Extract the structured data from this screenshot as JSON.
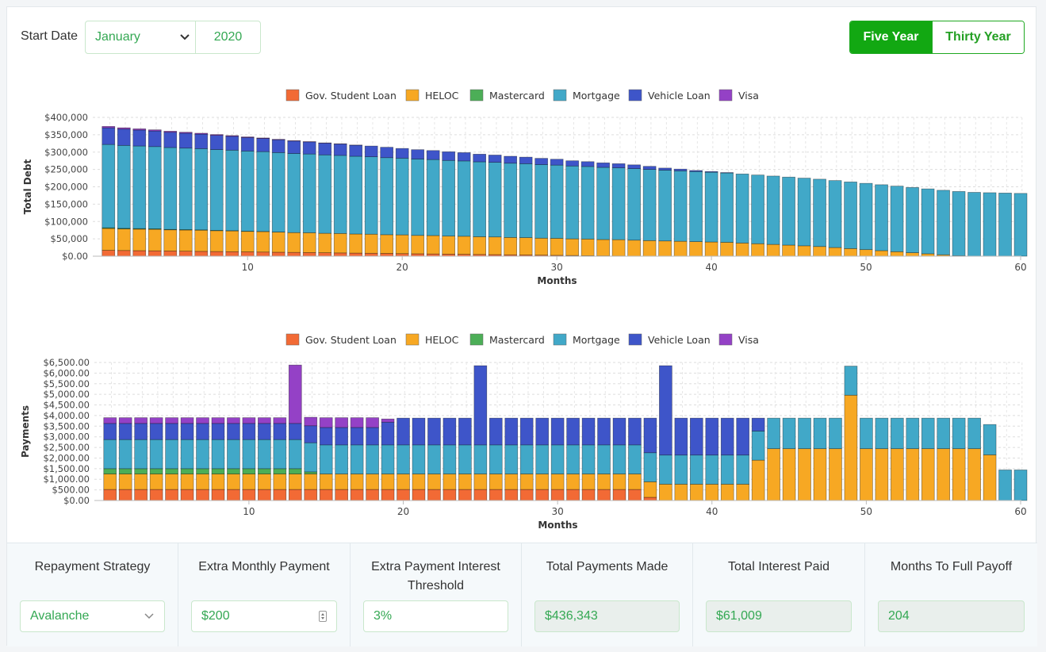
{
  "header": {
    "start_label": "Start Date",
    "month": "January",
    "year": "2020",
    "ranges": [
      "Five Year",
      "Thirty Year"
    ],
    "active_range": "Five Year"
  },
  "colors": {
    "Gov. Student Loan": "#f26a35",
    "HELOC": "#f7a823",
    "Mastercard": "#4cae57",
    "Mortgage": "#41a8c8",
    "Vehicle Loan": "#3e55c9",
    "Visa": "#9441c6"
  },
  "chart_data": [
    {
      "type": "bar",
      "stacked": true,
      "title": "",
      "xlabel": "Months",
      "ylabel": "Total Debt",
      "legend_position": "top",
      "ylim": [
        0,
        400000
      ],
      "y_ticks": [
        "$0.00",
        "$50,000",
        "$100,000",
        "$150,000",
        "$200,000",
        "$250,000",
        "$300,000",
        "$350,000",
        "$400,000"
      ],
      "x_ticks": [
        10,
        20,
        30,
        40,
        50,
        60
      ],
      "grid": true,
      "series_names": [
        "Gov. Student Loan",
        "HELOC",
        "Mastercard",
        "Mortgage",
        "Vehicle Loan",
        "Visa"
      ],
      "rows": [
        [
          1,
          17000,
          63000,
          2000,
          240000,
          48000,
          4000
        ],
        [
          2,
          16500,
          62000,
          1800,
          239000,
          47000,
          3800
        ],
        [
          3,
          16000,
          62000,
          1600,
          238000,
          46000,
          3500
        ],
        [
          4,
          15500,
          62000,
          1400,
          237000,
          45000,
          3300
        ],
        [
          5,
          15000,
          61000,
          1200,
          236000,
          44000,
          3000
        ],
        [
          6,
          14500,
          61000,
          1000,
          235000,
          43000,
          2800
        ],
        [
          7,
          14000,
          61000,
          900,
          234000,
          42000,
          2500
        ],
        [
          8,
          13500,
          60000,
          800,
          233000,
          41000,
          2300
        ],
        [
          9,
          13000,
          60000,
          600,
          232000,
          40000,
          2000
        ],
        [
          10,
          12500,
          59000,
          500,
          231000,
          39000,
          1800
        ],
        [
          11,
          12000,
          59000,
          300,
          230000,
          38000,
          1500
        ],
        [
          12,
          11500,
          58000,
          100,
          229000,
          37000,
          1300
        ],
        [
          13,
          11000,
          57000,
          0,
          228000,
          36000,
          1000
        ],
        [
          14,
          10500,
          57000,
          0,
          227000,
          35000,
          800
        ],
        [
          15,
          10000,
          56000,
          0,
          226000,
          34000,
          600
        ],
        [
          16,
          9500,
          56000,
          0,
          225000,
          33000,
          400
        ],
        [
          17,
          9000,
          55000,
          0,
          224000,
          32000,
          200
        ],
        [
          18,
          8500,
          55000,
          0,
          223000,
          31000,
          0
        ],
        [
          19,
          8000,
          54000,
          0,
          222000,
          30000,
          0
        ],
        [
          20,
          7500,
          54000,
          0,
          221000,
          28000,
          0
        ],
        [
          21,
          7000,
          53000,
          0,
          220000,
          27000,
          0
        ],
        [
          22,
          6500,
          53000,
          0,
          219000,
          26000,
          0
        ],
        [
          23,
          6000,
          52000,
          0,
          218000,
          25000,
          0
        ],
        [
          24,
          5500,
          52000,
          0,
          217000,
          24000,
          0
        ],
        [
          25,
          5000,
          51000,
          0,
          216000,
          22000,
          0
        ],
        [
          26,
          4500,
          51000,
          0,
          215000,
          21000,
          0
        ],
        [
          27,
          4000,
          50000,
          0,
          214000,
          20000,
          0
        ],
        [
          28,
          3500,
          50000,
          0,
          213000,
          19000,
          0
        ],
        [
          29,
          3000,
          49000,
          0,
          212000,
          18000,
          0
        ],
        [
          30,
          2500,
          49000,
          0,
          211000,
          17000,
          0
        ],
        [
          31,
          2000,
          48000,
          0,
          210000,
          15000,
          0
        ],
        [
          32,
          1500,
          48000,
          0,
          209000,
          14000,
          0
        ],
        [
          33,
          1000,
          47000,
          0,
          208000,
          13000,
          0
        ],
        [
          34,
          600,
          47000,
          0,
          207000,
          12000,
          0
        ],
        [
          35,
          300,
          46000,
          0,
          206000,
          11000,
          0
        ],
        [
          36,
          0,
          45000,
          0,
          205000,
          9000,
          0
        ],
        [
          37,
          0,
          44000,
          0,
          204000,
          6000,
          0
        ],
        [
          38,
          0,
          43000,
          0,
          203000,
          5000,
          0
        ],
        [
          39,
          0,
          42000,
          0,
          202000,
          3000,
          0
        ],
        [
          40,
          0,
          41000,
          0,
          201000,
          2000,
          0
        ],
        [
          41,
          0,
          40000,
          0,
          200000,
          1000,
          0
        ],
        [
          42,
          0,
          38000,
          0,
          199000,
          0,
          0
        ],
        [
          43,
          0,
          36000,
          0,
          198000,
          0,
          0
        ],
        [
          44,
          0,
          34000,
          0,
          197000,
          0,
          0
        ],
        [
          45,
          0,
          32000,
          0,
          196000,
          0,
          0
        ],
        [
          46,
          0,
          30000,
          0,
          195000,
          0,
          0
        ],
        [
          47,
          0,
          28000,
          0,
          194000,
          0,
          0
        ],
        [
          48,
          0,
          25000,
          0,
          193000,
          0,
          0
        ],
        [
          49,
          0,
          22000,
          0,
          192000,
          0,
          0
        ],
        [
          50,
          0,
          19000,
          0,
          191000,
          0,
          0
        ],
        [
          51,
          0,
          16000,
          0,
          190000,
          0,
          0
        ],
        [
          52,
          0,
          13000,
          0,
          189000,
          0,
          0
        ],
        [
          53,
          0,
          10000,
          0,
          188000,
          0,
          0
        ],
        [
          54,
          0,
          7000,
          0,
          187000,
          0,
          0
        ],
        [
          55,
          0,
          4000,
          0,
          186000,
          0,
          0
        ],
        [
          56,
          0,
          1500,
          0,
          185000,
          0,
          0
        ],
        [
          57,
          0,
          0,
          0,
          184000,
          0,
          0
        ],
        [
          58,
          0,
          0,
          0,
          183000,
          0,
          0
        ],
        [
          59,
          0,
          0,
          0,
          182000,
          0,
          0
        ],
        [
          60,
          0,
          0,
          0,
          181000,
          0,
          0
        ]
      ]
    },
    {
      "type": "bar",
      "stacked": true,
      "title": "",
      "xlabel": "Months",
      "ylabel": "Payments",
      "legend_position": "top",
      "ylim": [
        0,
        6500
      ],
      "y_ticks": [
        "$0.00",
        "$500.00",
        "$1,000.00",
        "$1,500.00",
        "$2,000.00",
        "$2,500.00",
        "$3,000.00",
        "$3,500.00",
        "$4,000.00",
        "$4,500.00",
        "$5,000.00",
        "$5,500.00",
        "$6,000.00",
        "$6,500.00"
      ],
      "x_ticks": [
        10,
        20,
        30,
        40,
        50,
        60
      ],
      "grid": true,
      "series_names": [
        "Gov. Student Loan",
        "HELOC",
        "Mastercard",
        "Mortgage",
        "Vehicle Loan",
        "Visa"
      ],
      "rows": [
        [
          1,
          520,
          730,
          250,
          1370,
          760,
          270
        ],
        [
          2,
          520,
          730,
          250,
          1370,
          760,
          270
        ],
        [
          3,
          520,
          730,
          250,
          1370,
          760,
          270
        ],
        [
          4,
          520,
          730,
          250,
          1370,
          760,
          270
        ],
        [
          5,
          520,
          730,
          250,
          1370,
          760,
          270
        ],
        [
          6,
          520,
          730,
          250,
          1370,
          760,
          270
        ],
        [
          7,
          520,
          730,
          250,
          1370,
          760,
          270
        ],
        [
          8,
          520,
          730,
          250,
          1370,
          760,
          270
        ],
        [
          9,
          520,
          730,
          250,
          1370,
          760,
          270
        ],
        [
          10,
          520,
          730,
          250,
          1370,
          760,
          270
        ],
        [
          11,
          520,
          730,
          250,
          1370,
          760,
          270
        ],
        [
          12,
          520,
          730,
          250,
          1370,
          760,
          270
        ],
        [
          13,
          520,
          730,
          250,
          1370,
          760,
          2750
        ],
        [
          14,
          520,
          730,
          100,
          1370,
          800,
          400
        ],
        [
          15,
          520,
          730,
          0,
          1370,
          820,
          460
        ],
        [
          16,
          520,
          730,
          0,
          1370,
          820,
          460
        ],
        [
          17,
          520,
          730,
          0,
          1370,
          820,
          460
        ],
        [
          18,
          520,
          730,
          0,
          1370,
          820,
          460
        ],
        [
          19,
          520,
          730,
          0,
          1370,
          1070,
          150
        ],
        [
          20,
          520,
          730,
          0,
          1370,
          1260,
          0
        ],
        [
          21,
          520,
          730,
          0,
          1370,
          1260,
          0
        ],
        [
          22,
          520,
          730,
          0,
          1370,
          1260,
          0
        ],
        [
          23,
          520,
          730,
          0,
          1370,
          1260,
          0
        ],
        [
          24,
          520,
          730,
          0,
          1370,
          1260,
          0
        ],
        [
          25,
          520,
          730,
          0,
          1370,
          3730,
          0
        ],
        [
          26,
          520,
          730,
          0,
          1370,
          1260,
          0
        ],
        [
          27,
          520,
          730,
          0,
          1370,
          1260,
          0
        ],
        [
          28,
          520,
          730,
          0,
          1370,
          1260,
          0
        ],
        [
          29,
          520,
          730,
          0,
          1370,
          1260,
          0
        ],
        [
          30,
          520,
          730,
          0,
          1370,
          1260,
          0
        ],
        [
          31,
          520,
          730,
          0,
          1370,
          1260,
          0
        ],
        [
          32,
          520,
          730,
          0,
          1370,
          1260,
          0
        ],
        [
          33,
          520,
          730,
          0,
          1370,
          1260,
          0
        ],
        [
          34,
          520,
          730,
          0,
          1370,
          1260,
          0
        ],
        [
          35,
          520,
          730,
          0,
          1370,
          1260,
          0
        ],
        [
          36,
          150,
          730,
          0,
          1370,
          1630,
          0
        ],
        [
          37,
          0,
          770,
          0,
          1370,
          4210,
          0
        ],
        [
          38,
          0,
          770,
          0,
          1370,
          1740,
          0
        ],
        [
          39,
          0,
          770,
          0,
          1370,
          1740,
          0
        ],
        [
          40,
          0,
          770,
          0,
          1370,
          1740,
          0
        ],
        [
          41,
          0,
          770,
          0,
          1370,
          1740,
          0
        ],
        [
          42,
          0,
          770,
          0,
          1370,
          1740,
          0
        ],
        [
          43,
          0,
          1900,
          0,
          1370,
          610,
          0
        ],
        [
          44,
          0,
          2440,
          0,
          1440,
          0,
          0
        ],
        [
          45,
          0,
          2440,
          0,
          1440,
          0,
          0
        ],
        [
          46,
          0,
          2440,
          0,
          1440,
          0,
          0
        ],
        [
          47,
          0,
          2440,
          0,
          1440,
          0,
          0
        ],
        [
          48,
          0,
          2440,
          0,
          1440,
          0,
          0
        ],
        [
          49,
          0,
          4960,
          0,
          1370,
          0,
          0
        ],
        [
          50,
          0,
          2440,
          0,
          1440,
          0,
          0
        ],
        [
          51,
          0,
          2440,
          0,
          1440,
          0,
          0
        ],
        [
          52,
          0,
          2440,
          0,
          1440,
          0,
          0
        ],
        [
          53,
          0,
          2440,
          0,
          1440,
          0,
          0
        ],
        [
          54,
          0,
          2440,
          0,
          1440,
          0,
          0
        ],
        [
          55,
          0,
          2440,
          0,
          1440,
          0,
          0
        ],
        [
          56,
          0,
          2440,
          0,
          1440,
          0,
          0
        ],
        [
          57,
          0,
          2440,
          0,
          1440,
          0,
          0
        ],
        [
          58,
          0,
          2150,
          0,
          1430,
          0,
          0
        ],
        [
          59,
          0,
          0,
          0,
          1440,
          0,
          0
        ],
        [
          60,
          0,
          0,
          0,
          1440,
          0,
          0
        ]
      ]
    }
  ],
  "bottom": {
    "cells": [
      {
        "label": "Repayment Strategy",
        "value": "Avalanche",
        "kind": "select"
      },
      {
        "label": "Extra Monthly Payment",
        "value": "$200",
        "kind": "number"
      },
      {
        "label": "Extra Payment Interest Threshold",
        "value": "3%",
        "kind": "input"
      },
      {
        "label": "Total Payments Made",
        "value": "$436,343",
        "kind": "readonly"
      },
      {
        "label": "Total Interest Paid",
        "value": "$61,009",
        "kind": "readonly"
      },
      {
        "label": "Months To Full Payoff",
        "value": "204",
        "kind": "readonly"
      }
    ]
  }
}
